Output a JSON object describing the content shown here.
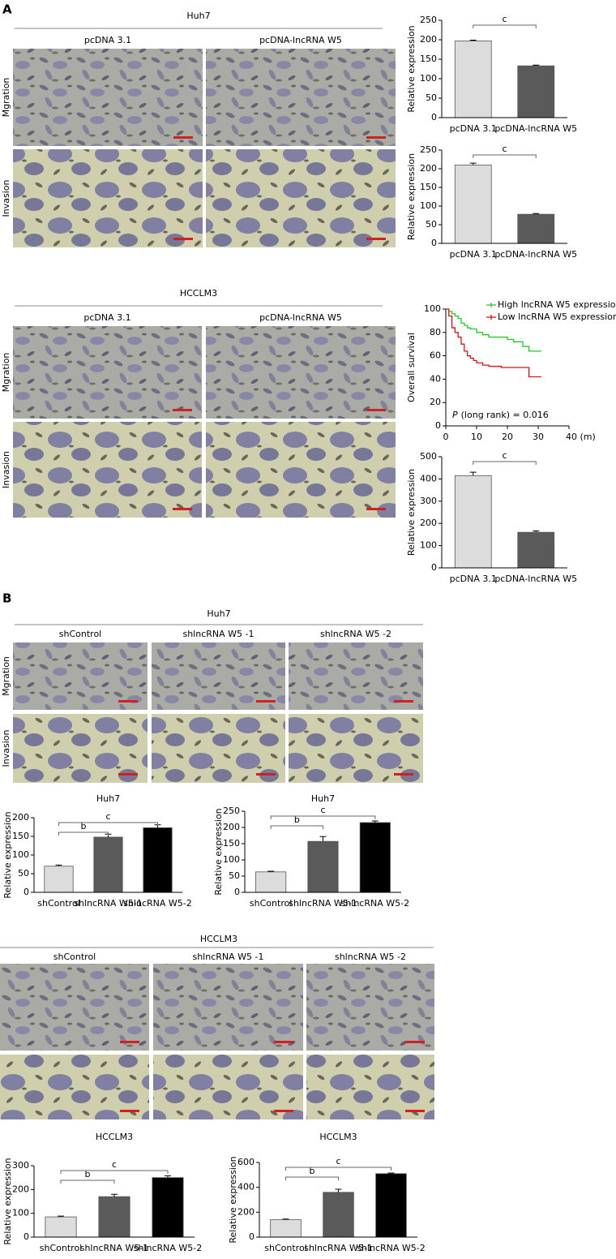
{
  "figure": {
    "panel_a": "A",
    "panel_b": "B",
    "sections": [
      {
        "cell_line": "Huh7",
        "columns": [
          "pcDNA 3.1",
          "pcDNA-lncRNA W5"
        ],
        "rows": [
          "Mgration",
          "Invasion"
        ]
      },
      {
        "cell_line": "HCCLM3",
        "columns": [
          "pcDNA 3.1",
          "pcDNA-lncRNA W5"
        ],
        "rows": [
          "Mgration",
          "Invasion"
        ]
      },
      {
        "cell_line": "Huh7",
        "columns": [
          "shControl",
          "shlncRNA W5 -1",
          "shlncRNA W5 -2"
        ],
        "rows": [
          "Mgration",
          "Invasion"
        ]
      },
      {
        "cell_line": "HCCLM3",
        "columns": [
          "shControl",
          "shlncRNA W5 -1",
          "shlncRNA W5 -2"
        ],
        "rows": []
      }
    ]
  },
  "chart_data": [
    {
      "type": "bar",
      "y_label": "Relative expression",
      "categories": [
        "pcDNA 3.1",
        "pcDNA-lncRNA W5"
      ],
      "values": [
        197,
        133
      ],
      "errors": [
        2,
        2
      ],
      "colors": [
        "#dcdcdc",
        "#5a5a5a"
      ],
      "ylim": [
        0,
        250
      ],
      "yticks": [
        0,
        50,
        100,
        150,
        200,
        250
      ],
      "brackets": [
        {
          "label": "c",
          "from": 0,
          "to": 1
        }
      ]
    },
    {
      "type": "bar",
      "y_label": "Relative expression",
      "categories": [
        "pcDNA 3.1",
        "pcDNA-lncRNA W5"
      ],
      "values": [
        210,
        78
      ],
      "errors": [
        5,
        2
      ],
      "colors": [
        "#dcdcdc",
        "#5a5a5a"
      ],
      "ylim": [
        0,
        250
      ],
      "yticks": [
        0,
        50,
        100,
        150,
        200,
        250
      ],
      "brackets": [
        {
          "label": "c",
          "from": 0,
          "to": 1
        }
      ]
    },
    {
      "type": "line",
      "y_label": "Overall survival",
      "annotation_italic": "P",
      "annotation": "(long rank) = 0.016",
      "xlim": [
        0,
        40
      ],
      "xticks": [
        0,
        10,
        20,
        30,
        {
          "value": 40,
          "label": "40 (m)"
        }
      ],
      "ylim": [
        0,
        100
      ],
      "yticks": [
        0,
        20,
        40,
        60,
        80,
        100
      ],
      "series": [
        {
          "name": "High lncRNA W5 expression",
          "color": "#22cc22",
          "x": [
            0,
            1,
            2,
            3,
            4,
            5,
            6,
            7,
            8,
            10,
            12,
            14,
            20,
            22,
            25,
            27,
            31
          ],
          "values": [
            100,
            98,
            96,
            94,
            92,
            88,
            86,
            84,
            83,
            80,
            78,
            76,
            74,
            72,
            68,
            64,
            64
          ]
        },
        {
          "name": "Low lncRNA W5 expression",
          "color": "#dd1111",
          "x": [
            0,
            1,
            2,
            3,
            4,
            5,
            6,
            7,
            8,
            9,
            10,
            12,
            14,
            18,
            27,
            31
          ],
          "values": [
            100,
            94,
            84,
            80,
            76,
            70,
            64,
            60,
            58,
            56,
            54,
            52,
            51,
            50,
            42,
            42
          ]
        }
      ]
    },
    {
      "type": "bar",
      "y_label": "Relative expression",
      "categories": [
        "pcDNA 3.1",
        "pcDNA-lncRNA W5"
      ],
      "values": [
        415,
        160
      ],
      "errors": [
        15,
        6
      ],
      "colors": [
        "#dcdcdc",
        "#5a5a5a"
      ],
      "ylim": [
        0,
        500
      ],
      "yticks": [
        0,
        100,
        200,
        300,
        400,
        500
      ],
      "brackets": [
        {
          "label": "c",
          "from": 0,
          "to": 1
        }
      ]
    },
    {
      "type": "bar",
      "title": "Huh7",
      "y_label": "Relative expression",
      "categories": [
        "shControl",
        "shlncRNA W5-1",
        "shlncRNA W5-2"
      ],
      "values": [
        70,
        148,
        173
      ],
      "errors": [
        3,
        8,
        8
      ],
      "colors": [
        "#dcdcdc",
        "#5a5a5a",
        "#000000"
      ],
      "ylim": [
        0,
        200
      ],
      "yticks": [
        0,
        50,
        100,
        150,
        200
      ],
      "brackets": [
        {
          "label": "b",
          "from": 0,
          "to": 1
        },
        {
          "label": "c",
          "from": 0,
          "to": 2
        }
      ]
    },
    {
      "type": "bar",
      "title": "Huh7",
      "y_label": "Relative expression",
      "categories": [
        "shControl",
        "shlncRNA W5-1",
        "shlncRNA W5-2"
      ],
      "values": [
        63,
        157,
        215
      ],
      "errors": [
        2,
        15,
        5
      ],
      "colors": [
        "#dcdcdc",
        "#5a5a5a",
        "#000000"
      ],
      "ylim": [
        0,
        250
      ],
      "yticks": [
        0,
        50,
        100,
        150,
        200,
        250
      ],
      "brackets": [
        {
          "label": "b",
          "from": 0,
          "to": 1
        },
        {
          "label": "c",
          "from": 0,
          "to": 2
        }
      ]
    },
    {
      "type": "bar",
      "title": "HCCLM3",
      "y_label": "Relative expression",
      "categories": [
        "shControl",
        "shlncRNA W5-1",
        "shlncRNA W5-2"
      ],
      "values": [
        85,
        170,
        250
      ],
      "errors": [
        3,
        10,
        8
      ],
      "colors": [
        "#dcdcdc",
        "#5a5a5a",
        "#000000"
      ],
      "ylim": [
        0,
        300
      ],
      "yticks": [
        0,
        100,
        200,
        300
      ],
      "brackets": [
        {
          "label": "b",
          "from": 0,
          "to": 1
        },
        {
          "label": "c",
          "from": 0,
          "to": 2
        }
      ]
    },
    {
      "type": "bar",
      "title": "HCCLM3",
      "y_label": "Relative expression",
      "categories": [
        "shControl",
        "shlncRNA W5-1",
        "shlncRNA W5-2"
      ],
      "values": [
        140,
        360,
        510
      ],
      "errors": [
        5,
        25,
        5
      ],
      "colors": [
        "#dcdcdc",
        "#5a5a5a",
        "#000000"
      ],
      "ylim": [
        0,
        600
      ],
      "yticks": [
        0,
        200,
        400,
        600
      ],
      "brackets": [
        {
          "label": "b",
          "from": 0,
          "to": 1
        },
        {
          "label": "c",
          "from": 0,
          "to": 2
        }
      ]
    }
  ]
}
